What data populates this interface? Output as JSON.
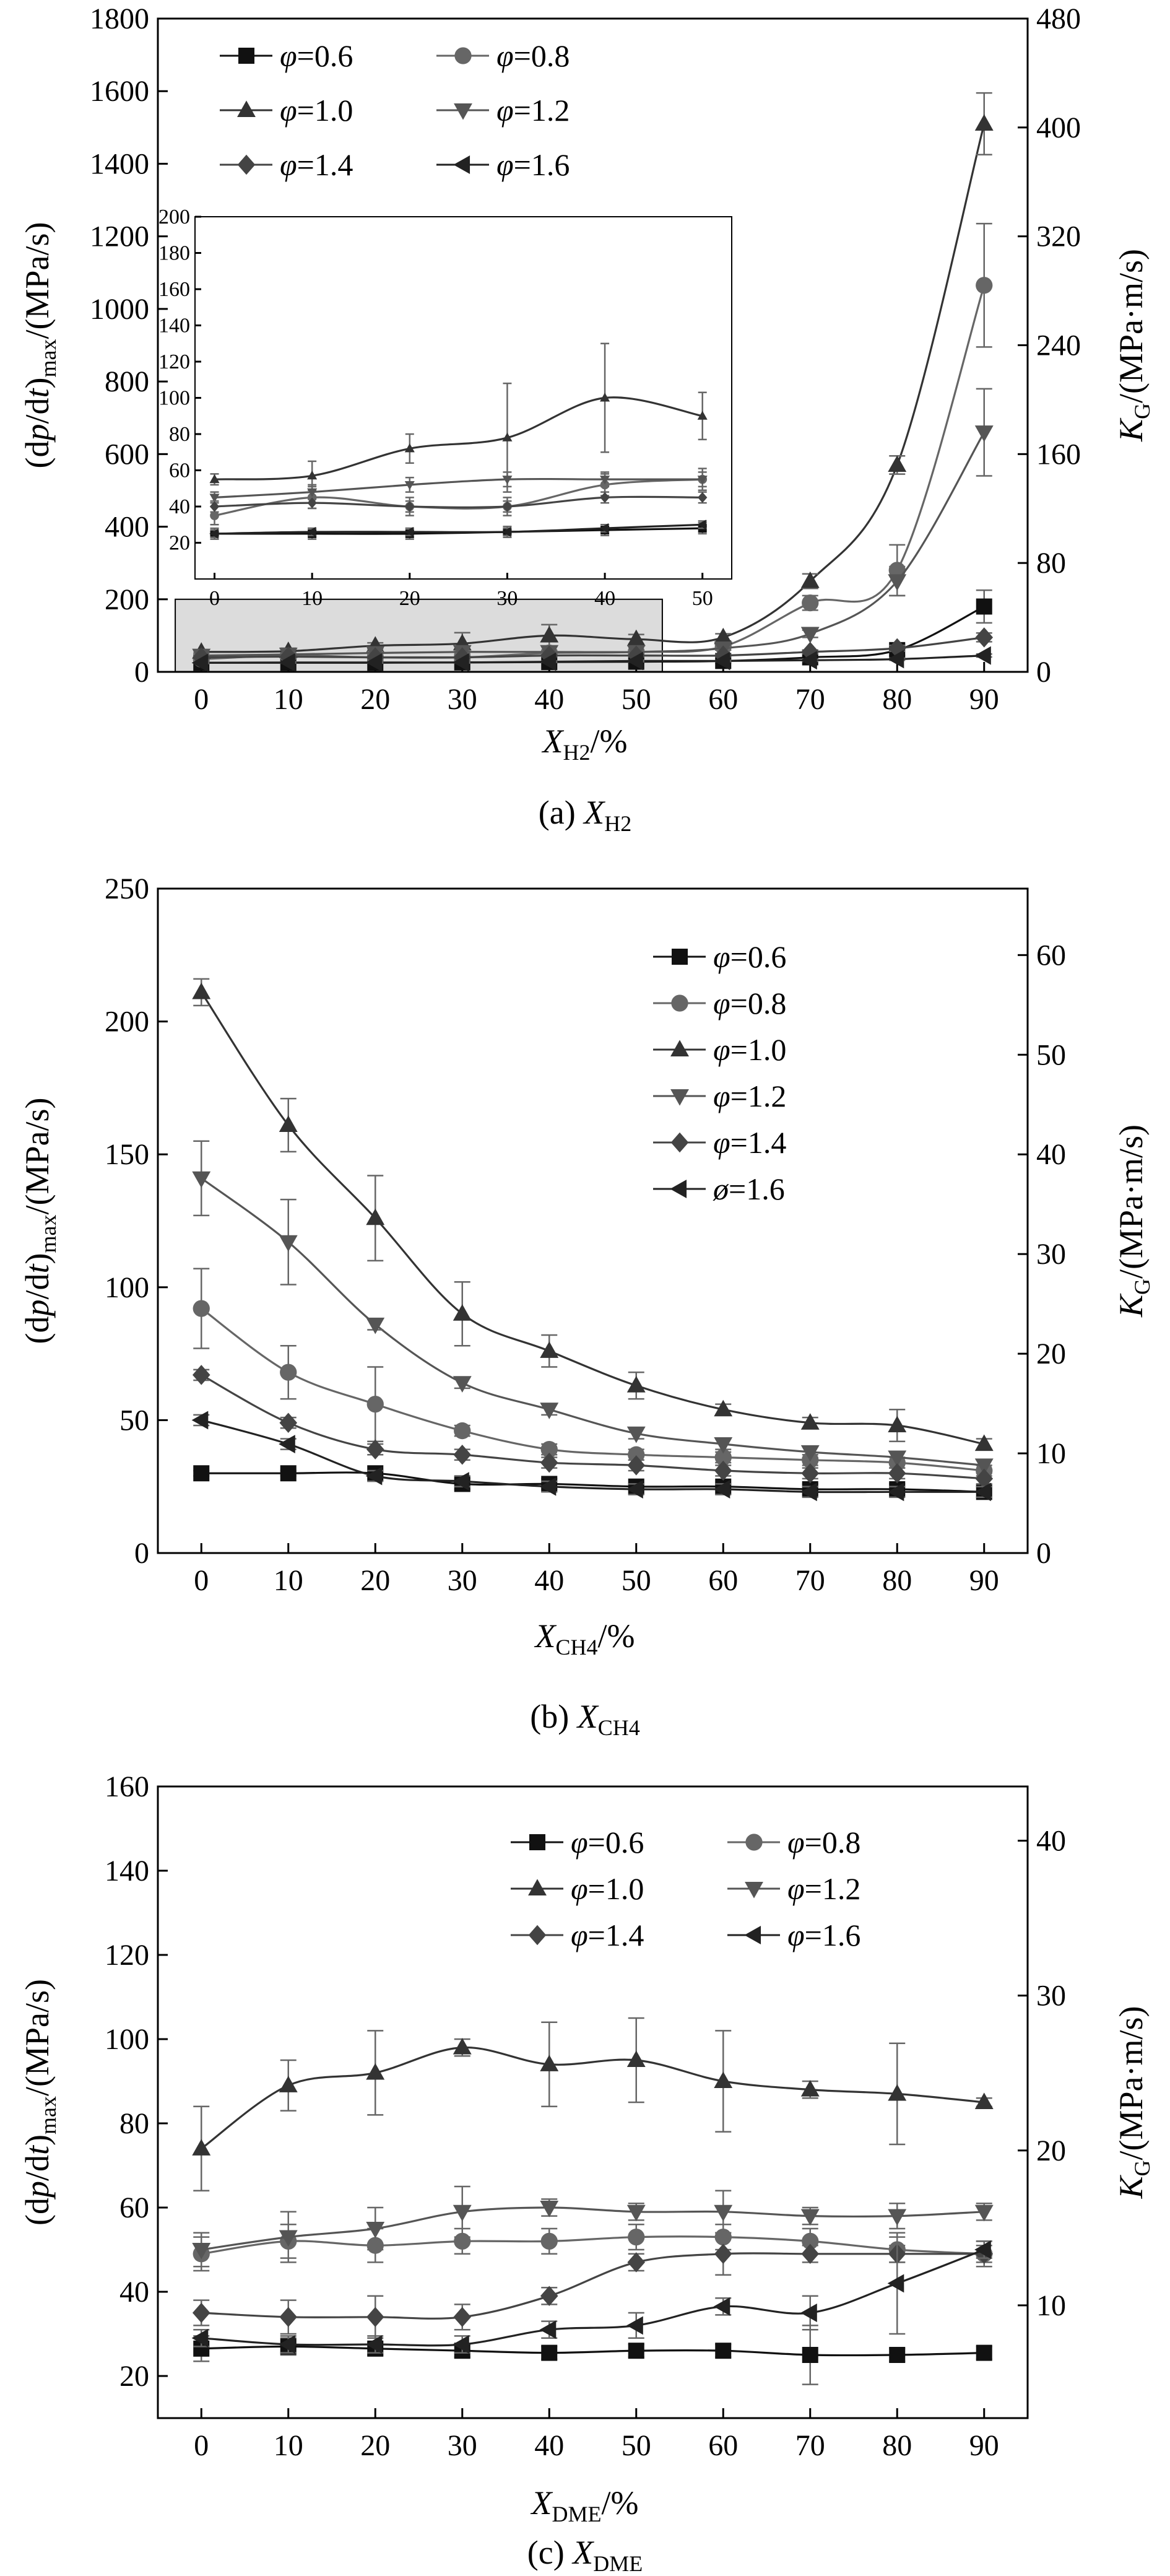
{
  "chart_data": [
    {
      "type": "line",
      "caption": {
        "prefix": "(a) ",
        "var": "X",
        "sub": "H2"
      },
      "xlabel": {
        "var": "X",
        "sub": "H2",
        "suffix": "/%"
      },
      "ylabel": "(dp/dt)max/(MPa/s)",
      "ylabel_parts": {
        "open": "(d",
        "p": "p",
        "mid": "/d",
        "t": "t",
        "close": ")",
        "sub": "max",
        "unit": "/(MPa/s)"
      },
      "y2label": {
        "var": "K",
        "sub": "G",
        "unit": "/(MPa·m/s)"
      },
      "x": [
        0,
        10,
        20,
        30,
        40,
        50,
        60,
        70,
        80,
        90
      ],
      "xlim": [
        -5,
        95
      ],
      "ylim": [
        0,
        1800
      ],
      "y2lim": [
        0,
        480
      ],
      "yticks": [
        0,
        200,
        400,
        600,
        800,
        1000,
        1200,
        1400,
        1600,
        1800
      ],
      "y2ticks": [
        0,
        80,
        160,
        240,
        320,
        400,
        480
      ],
      "xticks": [
        0,
        10,
        20,
        30,
        40,
        50,
        60,
        70,
        80,
        90
      ],
      "legend": {
        "position": "top-left",
        "columns": 2
      },
      "series": [
        {
          "name": "φ=0.6",
          "phi": "0.6",
          "marker": "square",
          "color": "#111111",
          "values": [
            25,
            25,
            25,
            26,
            27,
            28,
            30,
            40,
            60,
            180
          ],
          "err": [
            3,
            3,
            3,
            3,
            3,
            3,
            5,
            8,
            15,
            45
          ]
        },
        {
          "name": "φ=0.8",
          "phi": "0.8",
          "marker": "circle",
          "color": "#666666",
          "values": [
            35,
            45,
            40,
            40,
            52,
            55,
            70,
            190,
            280,
            1065
          ],
          "err": [
            5,
            6,
            5,
            5,
            6,
            6,
            10,
            20,
            70,
            170
          ]
        },
        {
          "name": "φ=1.0",
          "phi": "1.0",
          "marker": "triangle-up",
          "color": "#333333",
          "values": [
            55,
            57,
            72,
            78,
            100,
            90,
            95,
            250,
            570,
            1510
          ],
          "err": [
            3,
            8,
            8,
            30,
            30,
            13,
            10,
            20,
            25,
            85
          ]
        },
        {
          "name": "φ=1.2",
          "phi": "1.2",
          "marker": "triangle-down",
          "color": "#555555",
          "values": [
            45,
            48,
            52,
            55,
            55,
            55,
            65,
            105,
            250,
            660
          ],
          "err": [
            3,
            4,
            4,
            4,
            4,
            4,
            5,
            10,
            40,
            120
          ]
        },
        {
          "name": "φ=1.4",
          "phi": "1.4",
          "marker": "diamond",
          "color": "#444444",
          "values": [
            40,
            42,
            40,
            40,
            45,
            45,
            45,
            55,
            65,
            95
          ],
          "err": [
            3,
            3,
            3,
            3,
            3,
            3,
            3,
            5,
            8,
            12
          ]
        },
        {
          "name": "φ=1.6",
          "phi": "1.6",
          "marker": "triangle-left",
          "color": "#222222",
          "values": [
            25,
            26,
            26,
            26,
            28,
            30,
            30,
            32,
            35,
            45
          ],
          "err": [
            2,
            2,
            2,
            2,
            2,
            2,
            2,
            3,
            3,
            4
          ]
        }
      ],
      "shaded_region": {
        "x": [
          -3,
          53
        ],
        "y": [
          0,
          200
        ]
      },
      "inset": {
        "xlim": [
          -2,
          53
        ],
        "ylim": [
          0,
          200
        ],
        "xticks": [
          0,
          10,
          20,
          30,
          40,
          50
        ],
        "yticks": [
          20,
          40,
          60,
          80,
          100,
          120,
          140,
          160,
          180,
          200
        ]
      }
    },
    {
      "type": "line",
      "caption": {
        "prefix": "(b) ",
        "var": "X",
        "sub": "CH4"
      },
      "xlabel": {
        "var": "X",
        "sub": "CH4",
        "suffix": "/%"
      },
      "ylabel": "(dp/dt)max/(MPa/s)",
      "ylabel_parts": {
        "open": "(d",
        "p": "p",
        "mid": "/d",
        "t": "t",
        "close": ")",
        "sub": "max",
        "unit": "/(MPa/s)"
      },
      "y2label": {
        "var": "K",
        "sub": "G",
        "unit": "/(MPa·m/s)"
      },
      "x": [
        0,
        10,
        20,
        30,
        40,
        50,
        60,
        70,
        80,
        90
      ],
      "xlim": [
        -5,
        95
      ],
      "ylim": [
        0,
        250
      ],
      "y2lim": [
        0,
        66.67
      ],
      "yticks": [
        0,
        50,
        100,
        150,
        200,
        250
      ],
      "y2ticks": [
        0,
        10,
        20,
        30,
        40,
        50,
        60
      ],
      "xticks": [
        0,
        10,
        20,
        30,
        40,
        50,
        60,
        70,
        80,
        90
      ],
      "legend": {
        "position": "top-right",
        "columns": 1
      },
      "series": [
        {
          "name": "φ=0.6",
          "phi": "0.6",
          "marker": "square",
          "color": "#111111",
          "values": [
            30,
            30,
            30,
            26,
            26,
            25,
            25,
            24,
            24,
            23
          ],
          "err": [
            1,
            1,
            1,
            2,
            2,
            1,
            1,
            2,
            2,
            2
          ]
        },
        {
          "name": "φ=0.8",
          "phi": "0.8",
          "marker": "circle",
          "color": "#666666",
          "values": [
            92,
            68,
            56,
            46,
            39,
            37,
            36,
            35,
            34,
            31
          ],
          "err": [
            15,
            10,
            14,
            2,
            2,
            2,
            2,
            2,
            2,
            2
          ]
        },
        {
          "name": "φ=1.0",
          "phi": "1.0",
          "marker": "triangle-up",
          "color": "#333333",
          "values": [
            211,
            161,
            126,
            90,
            76,
            63,
            54,
            49,
            48,
            41
          ],
          "err": [
            5,
            10,
            16,
            12,
            6,
            5,
            2,
            2,
            6,
            2
          ]
        },
        {
          "name": "φ=1.2",
          "phi": "1.2",
          "marker": "triangle-down",
          "color": "#555555",
          "values": [
            141,
            117,
            86,
            64,
            54,
            45,
            41,
            38,
            36,
            33
          ],
          "err": [
            14,
            16,
            2,
            2,
            2,
            2,
            2,
            2,
            2,
            2
          ]
        },
        {
          "name": "φ=1.4",
          "phi": "1.4",
          "marker": "diamond",
          "color": "#444444",
          "values": [
            67,
            49,
            39,
            37,
            34,
            33,
            31,
            30,
            30,
            28
          ],
          "err": [
            2,
            2,
            2,
            2,
            2,
            2,
            2,
            2,
            2,
            2
          ]
        },
        {
          "name": "ø=1.6",
          "phi": "1.6",
          "marker": "triangle-left",
          "color": "#222222",
          "values": [
            50,
            41,
            29,
            27,
            25,
            24,
            24,
            23,
            23,
            23
          ],
          "err": [
            2,
            2,
            2,
            2,
            2,
            2,
            2,
            2,
            2,
            2
          ]
        }
      ]
    },
    {
      "type": "line",
      "caption": {
        "prefix": "(c) ",
        "var": "X",
        "sub": "DME"
      },
      "xlabel": {
        "var": "X",
        "sub": "DME",
        "suffix": "/%"
      },
      "ylabel": "(dp/dt)max/(MPa/s)",
      "ylabel_parts": {
        "open": "(d",
        "p": "p",
        "mid": "/d",
        "t": "t",
        "close": ")",
        "sub": "max",
        "unit": "/(MPa/s)"
      },
      "y2label": {
        "var": "K",
        "sub": "G",
        "unit": "/(MPa·m/s)"
      },
      "x": [
        0,
        10,
        20,
        30,
        40,
        50,
        60,
        70,
        80,
        90
      ],
      "xlim": [
        -5,
        95
      ],
      "ylim": [
        10,
        160
      ],
      "y2lim": [
        2.72,
        43.5
      ],
      "yticks": [
        20,
        40,
        60,
        80,
        100,
        120,
        140,
        160
      ],
      "y2ticks": [
        10,
        20,
        30,
        40
      ],
      "xticks": [
        0,
        10,
        20,
        30,
        40,
        50,
        60,
        70,
        80,
        90
      ],
      "legend": {
        "position": "top-right",
        "columns": 2
      },
      "series": [
        {
          "name": "φ=0.6",
          "phi": "0.6",
          "marker": "square",
          "color": "#111111",
          "values": [
            26.5,
            27,
            26.5,
            26,
            25.5,
            26,
            26,
            25,
            25,
            25.5
          ],
          "err": [
            3,
            2,
            1.5,
            1.5,
            1.5,
            1.5,
            1.5,
            7,
            1.5,
            1.5
          ]
        },
        {
          "name": "φ=0.8",
          "phi": "0.8",
          "marker": "circle",
          "color": "#666666",
          "values": [
            49,
            52,
            51,
            52,
            52,
            53,
            53,
            52,
            50,
            49
          ],
          "err": [
            4,
            4,
            4,
            3,
            3,
            3,
            3,
            3,
            3,
            3
          ]
        },
        {
          "name": "φ=1.0",
          "phi": "1.0",
          "marker": "triangle-up",
          "color": "#333333",
          "values": [
            74,
            89,
            92,
            98,
            94,
            95,
            90,
            88,
            87,
            85
          ],
          "err": [
            10,
            6,
            10,
            2,
            10,
            10,
            12,
            2,
            12,
            1
          ]
        },
        {
          "name": "φ=1.2",
          "phi": "1.2",
          "marker": "triangle-down",
          "color": "#555555",
          "values": [
            50,
            53,
            55,
            59,
            60,
            59,
            59,
            58,
            58,
            59
          ],
          "err": [
            4,
            6,
            5,
            6,
            2,
            2,
            5,
            2,
            3,
            2
          ]
        },
        {
          "name": "φ=1.4",
          "phi": "1.4",
          "marker": "diamond",
          "color": "#444444",
          "values": [
            35,
            34,
            34,
            34,
            39,
            47,
            49,
            49,
            49,
            49
          ],
          "err": [
            3,
            4,
            5,
            3,
            2,
            2,
            5,
            2,
            2,
            2
          ]
        },
        {
          "name": "φ=1.6",
          "phi": "1.6",
          "marker": "triangle-left",
          "color": "#222222",
          "values": [
            29,
            27.5,
            27.5,
            27.5,
            31,
            32,
            36.5,
            35,
            42,
            50
          ],
          "err": [
            2,
            2,
            2,
            2,
            2,
            3,
            2,
            4,
            12,
            2
          ]
        }
      ]
    }
  ]
}
